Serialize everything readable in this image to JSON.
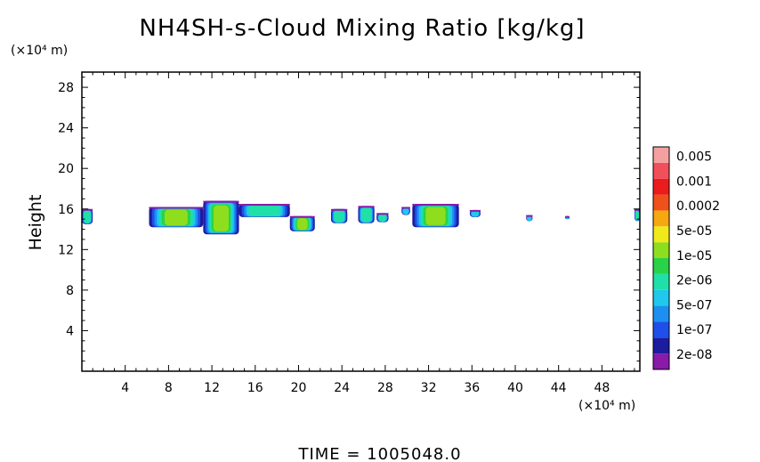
{
  "chart_data": {
    "type": "heatmap",
    "title": "NH4SH-s-Cloud Mixing Ratio [kg/kg]",
    "ylabel": "Height",
    "y_unit": "(×10⁴ m)",
    "x_unit": "(×10⁴ m)",
    "footer": "TIME  =  1005048.0",
    "xlim": [
      0,
      51.5
    ],
    "ylim": [
      0,
      29.5
    ],
    "x_ticks": [
      4,
      8,
      12,
      16,
      20,
      24,
      28,
      32,
      36,
      40,
      44,
      48
    ],
    "y_ticks": [
      4,
      8,
      12,
      16,
      20,
      24,
      28
    ],
    "colorbar": {
      "colors": [
        "#8a1aa8",
        "#1c1c9e",
        "#1f4fe8",
        "#1d8ff0",
        "#1fc8ec",
        "#1fe0a8",
        "#2ad24a",
        "#8ede1e",
        "#f0ea1a",
        "#f5a80f",
        "#f0501a",
        "#ec1c1c",
        "#f0505a",
        "#f5a0a0"
      ],
      "labels": [
        "2e-08",
        "1e-07",
        "5e-07",
        "2e-06",
        "1e-05",
        "5e-05",
        "0.0002",
        "0.001",
        "0.005"
      ]
    },
    "clouds": [
      {
        "x0": 0.0,
        "x1": 1.0,
        "yb": 14.5,
        "yt": 16.0,
        "core": 0.4
      },
      {
        "x0": 6.2,
        "x1": 11.2,
        "yb": 14.2,
        "yt": 16.2,
        "core": 0.6
      },
      {
        "x0": 11.2,
        "x1": 14.5,
        "yb": 13.5,
        "yt": 16.8,
        "core": 0.7
      },
      {
        "x0": 14.5,
        "x1": 19.2,
        "yb": 15.2,
        "yt": 16.5,
        "core": 0.3
      },
      {
        "x0": 19.2,
        "x1": 21.5,
        "yb": 13.8,
        "yt": 15.3,
        "core": 0.6
      },
      {
        "x0": 23.0,
        "x1": 24.5,
        "yb": 14.6,
        "yt": 16.0,
        "core": 0.3
      },
      {
        "x0": 25.5,
        "x1": 27.0,
        "yb": 14.6,
        "yt": 16.3,
        "core": 0.4
      },
      {
        "x0": 27.2,
        "x1": 28.3,
        "yb": 14.7,
        "yt": 15.6,
        "core": 0.3
      },
      {
        "x0": 29.5,
        "x1": 30.3,
        "yb": 15.4,
        "yt": 16.2,
        "core": 0.2
      },
      {
        "x0": 30.5,
        "x1": 34.8,
        "yb": 14.2,
        "yt": 16.5,
        "core": 0.7
      },
      {
        "x0": 35.8,
        "x1": 36.8,
        "yb": 15.2,
        "yt": 15.9,
        "core": 0.2
      },
      {
        "x0": 41.0,
        "x1": 41.6,
        "yb": 14.8,
        "yt": 15.4,
        "core": 0.2
      },
      {
        "x0": 44.6,
        "x1": 45.0,
        "yb": 15.0,
        "yt": 15.3,
        "core": 0.1
      },
      {
        "x0": 51.0,
        "x1": 51.5,
        "yb": 14.8,
        "yt": 16.0,
        "core": 0.3
      }
    ]
  }
}
